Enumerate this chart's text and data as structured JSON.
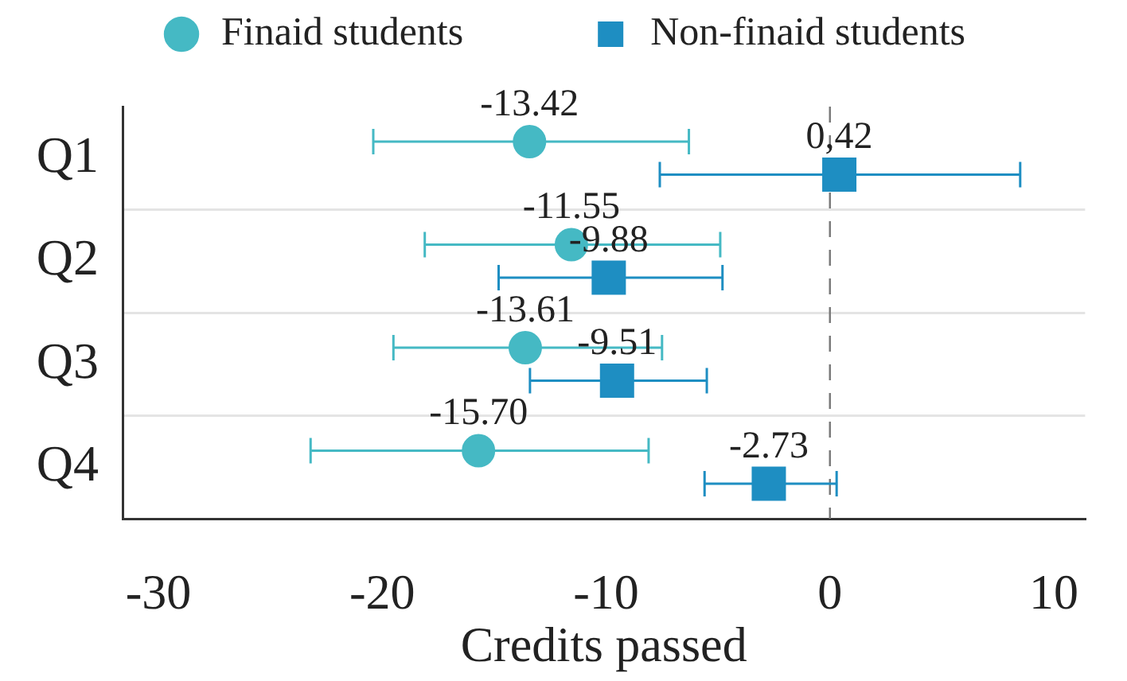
{
  "chart_data": {
    "type": "scatter",
    "orientation": "horizontal",
    "xlabel": "Credits passed",
    "categories": [
      "Q1",
      "Q2",
      "Q3",
      "Q4"
    ],
    "series": [
      {
        "name": "Finaid students",
        "color": "#45b9c4",
        "marker": "circle",
        "values": [
          -13.42,
          -11.55,
          -13.61,
          -15.7
        ],
        "errors": [
          [
            -20.4,
            -6.3
          ],
          [
            -18.1,
            -4.9
          ],
          [
            -19.5,
            -7.5
          ],
          [
            -23.2,
            -8.1
          ]
        ],
        "value_labels": [
          "-13.42",
          "-11.55",
          "-13.61",
          "-15.70"
        ]
      },
      {
        "name": "Non-finaid students",
        "color": "#1e8ec2",
        "marker": "square",
        "values": [
          0.42,
          -9.88,
          -9.51,
          -2.73
        ],
        "errors": [
          [
            -7.6,
            8.5
          ],
          [
            -14.8,
            -4.8
          ],
          [
            -13.4,
            -5.5
          ],
          [
            -5.6,
            0.3
          ]
        ],
        "value_labels": [
          "0,42",
          "-9.88",
          "-9.51",
          "-2.73"
        ]
      }
    ],
    "xlim": [
      -31.6,
      11.4
    ],
    "xticks": [
      -30,
      -20,
      -10,
      0,
      10
    ],
    "grid": "y",
    "legend": "top",
    "ref_lines": [
      {
        "axis": "x",
        "value": 0,
        "color": "#777777",
        "line_style": "dashed"
      }
    ]
  }
}
